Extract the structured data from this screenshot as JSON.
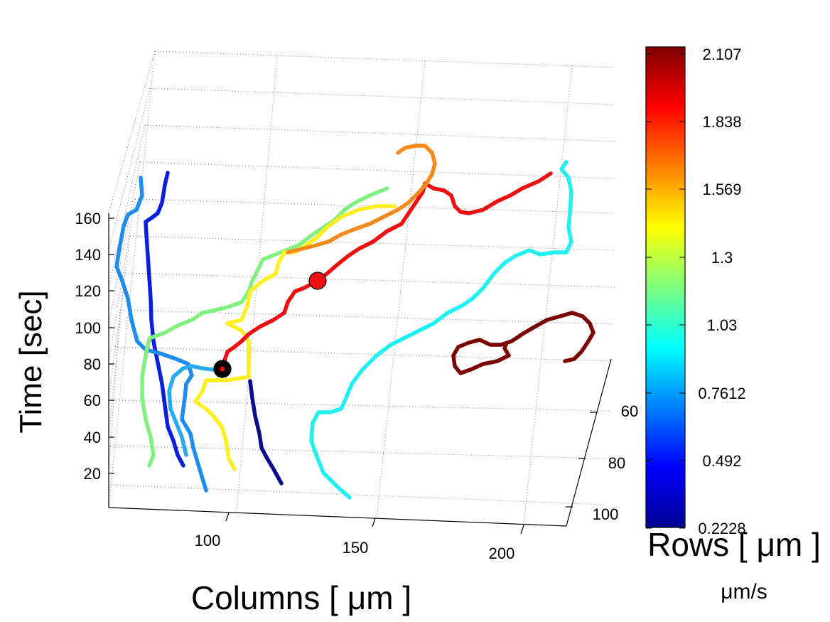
{
  "chart_data": {
    "type": "line",
    "subtype": "3d-trajectories",
    "title": "",
    "xlabel": "Columns [ μm ]",
    "ylabel": "Rows [ μm ]",
    "zlabel": "Time [sec]",
    "x_ticks": [
      "100",
      "150",
      "200"
    ],
    "y_ticks": [
      "60",
      "80",
      "100"
    ],
    "z_ticks": [
      "20",
      "40",
      "60",
      "80",
      "100",
      "120",
      "140",
      "160"
    ],
    "grid": true,
    "colorbar": {
      "label": "μm/s",
      "ticks": [
        "2.107",
        "1.838",
        "1.569",
        "1.3",
        "1.03",
        "0.7612",
        "0.492",
        "0.2228"
      ],
      "min": 0.2228,
      "max": 2.107,
      "colormap": "jet"
    },
    "series": [
      {
        "speed": 0.55,
        "color": "#0a1ee0",
        "time": [
          25,
          45,
          60,
          75,
          95,
          115,
          130,
          150,
          168,
          180
        ]
      },
      {
        "speed": 0.23,
        "color": "#0a0e8c",
        "time": [
          12,
          30,
          50,
          70
        ]
      },
      {
        "speed": 0.8,
        "color": "#1e8cf0",
        "time": [
          10,
          30,
          50,
          70,
          90,
          110,
          130,
          150,
          170
        ]
      },
      {
        "speed": 0.9,
        "color": "#28aaf0",
        "time": [
          22,
          40,
          60,
          75,
          80
        ]
      },
      {
        "speed": 1.1,
        "color": "#80f080",
        "time": [
          25,
          45,
          65,
          85,
          100,
          115,
          135,
          150,
          160
        ]
      },
      {
        "speed": 1.45,
        "color": "#ffee22",
        "time": [
          20,
          40,
          60,
          80,
          100,
          120,
          140,
          155
        ]
      },
      {
        "speed": 1.9,
        "color": "#ee1010",
        "time": [
          78,
          95,
          110,
          125,
          140,
          155,
          170
        ]
      },
      {
        "speed": 1.65,
        "color": "#f58a1a",
        "time": [
          145,
          155,
          165,
          180,
          190
        ]
      },
      {
        "speed": 0.97,
        "color": "#20f0f0",
        "time": [
          5,
          25,
          45,
          65,
          85,
          105,
          125,
          145
        ]
      },
      {
        "speed": 2.1,
        "color": "#7c0000",
        "time": [
          70,
          80,
          90,
          100
        ]
      }
    ],
    "markers": [
      {
        "label": "",
        "color": "#000000",
        "time": 78
      },
      {
        "label": "",
        "color": "#ee1010",
        "time": 126
      }
    ]
  }
}
